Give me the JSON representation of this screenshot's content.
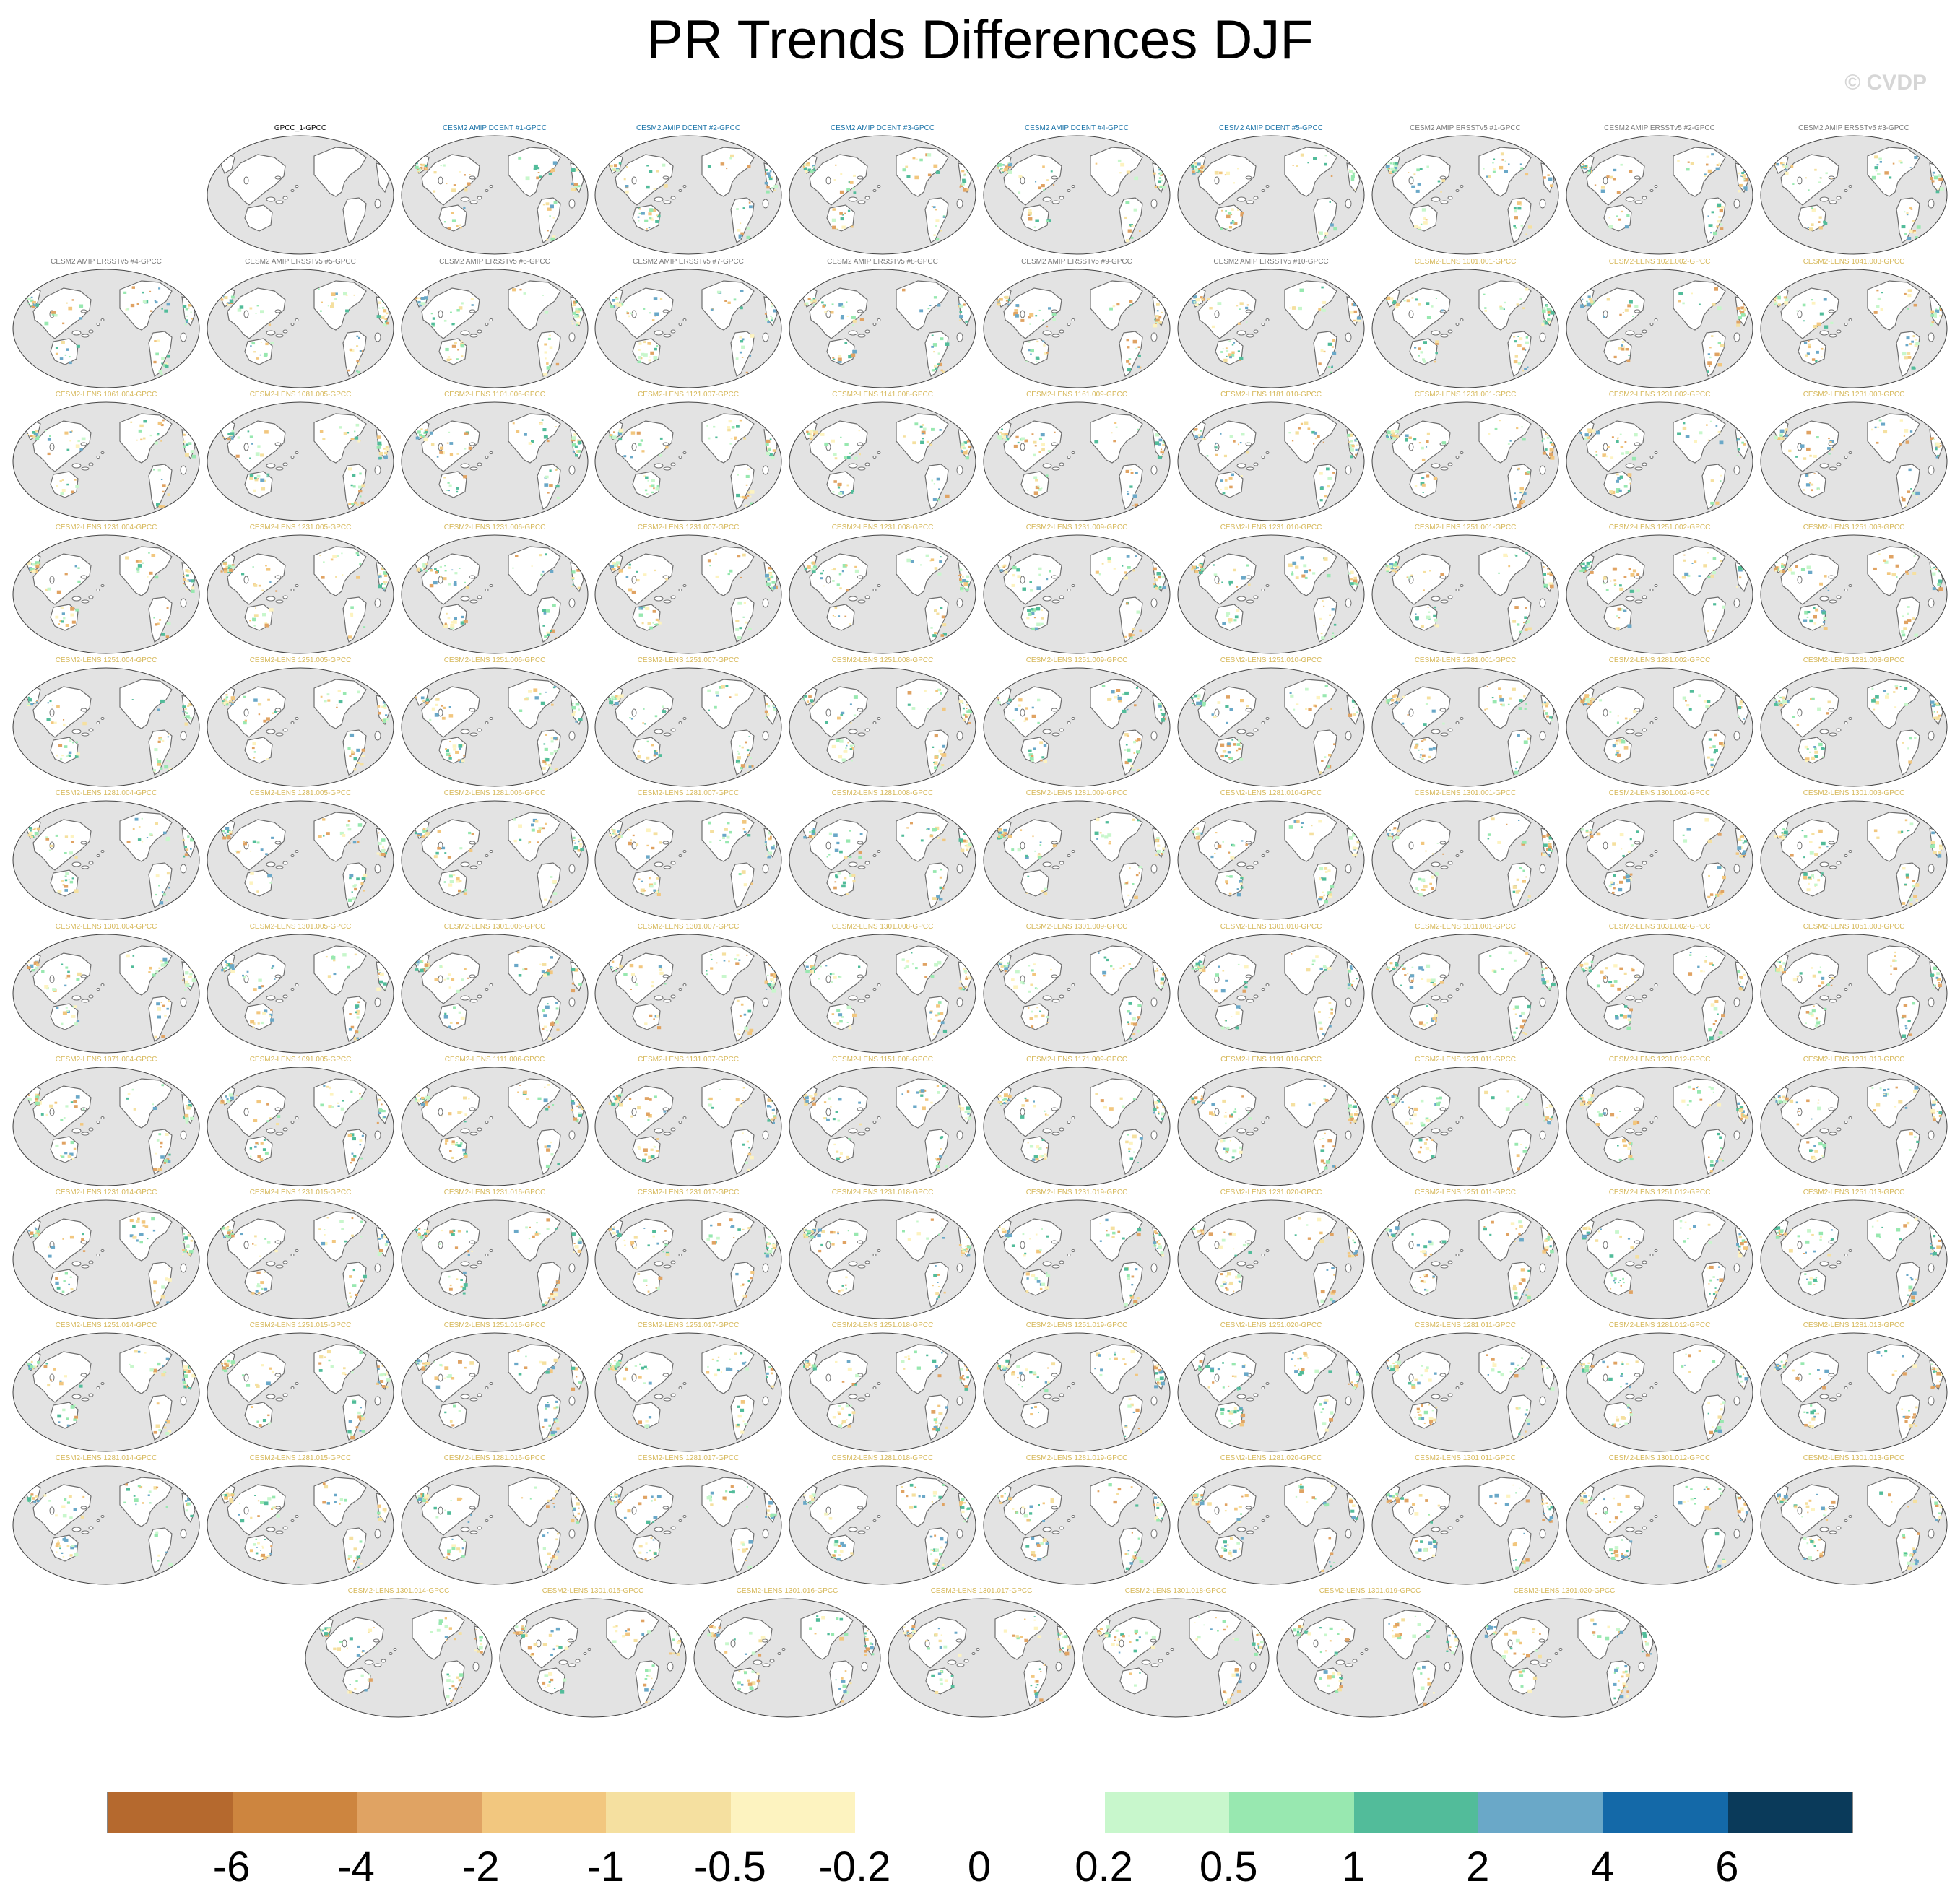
{
  "title": "PR Trends Differences DJF",
  "copyright": "© CVDP",
  "chart_data": {
    "type": "heatmap",
    "title": "PR Trends Differences DJF",
    "description_of_panels": "Global map panels of DJF precipitation trend differences relative to GPCC",
    "panels": [
      {
        "label": "GPCC_1-GPCC",
        "group": "obs"
      },
      {
        "label": "CESM2 AMIP DCENT #1-GPCC",
        "group": "dcent"
      },
      {
        "label": "CESM2 AMIP DCENT #2-GPCC",
        "group": "dcent"
      },
      {
        "label": "CESM2 AMIP DCENT #3-GPCC",
        "group": "dcent"
      },
      {
        "label": "CESM2 AMIP DCENT #4-GPCC",
        "group": "dcent"
      },
      {
        "label": "CESM2 AMIP DCENT #5-GPCC",
        "group": "dcent"
      },
      {
        "label": "CESM2 AMIP ERSSTv5 #1-GPCC",
        "group": "ersst"
      },
      {
        "label": "CESM2 AMIP ERSSTv5 #2-GPCC",
        "group": "ersst"
      },
      {
        "label": "CESM2 AMIP ERSSTv5 #3-GPCC",
        "group": "ersst"
      },
      {
        "label": "CESM2 AMIP ERSSTv5 #4-GPCC",
        "group": "ersst"
      },
      {
        "label": "CESM2 AMIP ERSSTv5 #5-GPCC",
        "group": "ersst"
      },
      {
        "label": "CESM2 AMIP ERSSTv5 #6-GPCC",
        "group": "ersst"
      },
      {
        "label": "CESM2 AMIP ERSSTv5 #7-GPCC",
        "group": "ersst"
      },
      {
        "label": "CESM2 AMIP ERSSTv5 #8-GPCC",
        "group": "ersst"
      },
      {
        "label": "CESM2 AMIP ERSSTv5 #9-GPCC",
        "group": "ersst"
      },
      {
        "label": "CESM2 AMIP ERSSTv5 #10-GPCC",
        "group": "ersst"
      },
      {
        "label": "CESM2-LENS 1001.001-GPCC",
        "group": "lens"
      },
      {
        "label": "CESM2-LENS 1021.002-GPCC",
        "group": "lens"
      },
      {
        "label": "CESM2-LENS 1041.003-GPCC",
        "group": "lens"
      },
      {
        "label": "CESM2-LENS 1061.004-GPCC",
        "group": "lens"
      },
      {
        "label": "CESM2-LENS 1081.005-GPCC",
        "group": "lens"
      },
      {
        "label": "CESM2-LENS 1101.006-GPCC",
        "group": "lens"
      },
      {
        "label": "CESM2-LENS 1121.007-GPCC",
        "group": "lens"
      },
      {
        "label": "CESM2-LENS 1141.008-GPCC",
        "group": "lens"
      },
      {
        "label": "CESM2-LENS 1161.009-GPCC",
        "group": "lens"
      },
      {
        "label": "CESM2-LENS 1181.010-GPCC",
        "group": "lens"
      },
      {
        "label": "CESM2-LENS 1231.001-GPCC",
        "group": "lens"
      },
      {
        "label": "CESM2-LENS 1231.002-GPCC",
        "group": "lens"
      },
      {
        "label": "CESM2-LENS 1231.003-GPCC",
        "group": "lens"
      },
      {
        "label": "CESM2-LENS 1231.004-GPCC",
        "group": "lens"
      },
      {
        "label": "CESM2-LENS 1231.005-GPCC",
        "group": "lens"
      },
      {
        "label": "CESM2-LENS 1231.006-GPCC",
        "group": "lens"
      },
      {
        "label": "CESM2-LENS 1231.007-GPCC",
        "group": "lens"
      },
      {
        "label": "CESM2-LENS 1231.008-GPCC",
        "group": "lens"
      },
      {
        "label": "CESM2-LENS 1231.009-GPCC",
        "group": "lens"
      },
      {
        "label": "CESM2-LENS 1231.010-GPCC",
        "group": "lens"
      },
      {
        "label": "CESM2-LENS 1251.001-GPCC",
        "group": "lens"
      },
      {
        "label": "CESM2-LENS 1251.002-GPCC",
        "group": "lens"
      },
      {
        "label": "CESM2-LENS 1251.003-GPCC",
        "group": "lens"
      },
      {
        "label": "CESM2-LENS 1251.004-GPCC",
        "group": "lens"
      },
      {
        "label": "CESM2-LENS 1251.005-GPCC",
        "group": "lens"
      },
      {
        "label": "CESM2-LENS 1251.006-GPCC",
        "group": "lens"
      },
      {
        "label": "CESM2-LENS 1251.007-GPCC",
        "group": "lens"
      },
      {
        "label": "CESM2-LENS 1251.008-GPCC",
        "group": "lens"
      },
      {
        "label": "CESM2-LENS 1251.009-GPCC",
        "group": "lens"
      },
      {
        "label": "CESM2-LENS 1251.010-GPCC",
        "group": "lens"
      },
      {
        "label": "CESM2-LENS 1281.001-GPCC",
        "group": "lens"
      },
      {
        "label": "CESM2-LENS 1281.002-GPCC",
        "group": "lens"
      },
      {
        "label": "CESM2-LENS 1281.003-GPCC",
        "group": "lens"
      },
      {
        "label": "CESM2-LENS 1281.004-GPCC",
        "group": "lens"
      },
      {
        "label": "CESM2-LENS 1281.005-GPCC",
        "group": "lens"
      },
      {
        "label": "CESM2-LENS 1281.006-GPCC",
        "group": "lens"
      },
      {
        "label": "CESM2-LENS 1281.007-GPCC",
        "group": "lens"
      },
      {
        "label": "CESM2-LENS 1281.008-GPCC",
        "group": "lens"
      },
      {
        "label": "CESM2-LENS 1281.009-GPCC",
        "group": "lens"
      },
      {
        "label": "CESM2-LENS 1281.010-GPCC",
        "group": "lens"
      },
      {
        "label": "CESM2-LENS 1301.001-GPCC",
        "group": "lens"
      },
      {
        "label": "CESM2-LENS 1301.002-GPCC",
        "group": "lens"
      },
      {
        "label": "CESM2-LENS 1301.003-GPCC",
        "group": "lens"
      },
      {
        "label": "CESM2-LENS 1301.004-GPCC",
        "group": "lens"
      },
      {
        "label": "CESM2-LENS 1301.005-GPCC",
        "group": "lens"
      },
      {
        "label": "CESM2-LENS 1301.006-GPCC",
        "group": "lens"
      },
      {
        "label": "CESM2-LENS 1301.007-GPCC",
        "group": "lens"
      },
      {
        "label": "CESM2-LENS 1301.008-GPCC",
        "group": "lens"
      },
      {
        "label": "CESM2-LENS 1301.009-GPCC",
        "group": "lens"
      },
      {
        "label": "CESM2-LENS 1301.010-GPCC",
        "group": "lens"
      },
      {
        "label": "CESM2-LENS 1011.001-GPCC",
        "group": "lens"
      },
      {
        "label": "CESM2-LENS 1031.002-GPCC",
        "group": "lens"
      },
      {
        "label": "CESM2-LENS 1051.003-GPCC",
        "group": "lens"
      },
      {
        "label": "CESM2-LENS 1071.004-GPCC",
        "group": "lens"
      },
      {
        "label": "CESM2-LENS 1091.005-GPCC",
        "group": "lens"
      },
      {
        "label": "CESM2-LENS 1111.006-GPCC",
        "group": "lens"
      },
      {
        "label": "CESM2-LENS 1131.007-GPCC",
        "group": "lens"
      },
      {
        "label": "CESM2-LENS 1151.008-GPCC",
        "group": "lens"
      },
      {
        "label": "CESM2-LENS 1171.009-GPCC",
        "group": "lens"
      },
      {
        "label": "CESM2-LENS 1191.010-GPCC",
        "group": "lens"
      },
      {
        "label": "CESM2-LENS 1231.011-GPCC",
        "group": "lens"
      },
      {
        "label": "CESM2-LENS 1231.012-GPCC",
        "group": "lens"
      },
      {
        "label": "CESM2-LENS 1231.013-GPCC",
        "group": "lens"
      },
      {
        "label": "CESM2-LENS 1231.014-GPCC",
        "group": "lens"
      },
      {
        "label": "CESM2-LENS 1231.015-GPCC",
        "group": "lens"
      },
      {
        "label": "CESM2-LENS 1231.016-GPCC",
        "group": "lens"
      },
      {
        "label": "CESM2-LENS 1231.017-GPCC",
        "group": "lens"
      },
      {
        "label": "CESM2-LENS 1231.018-GPCC",
        "group": "lens"
      },
      {
        "label": "CESM2-LENS 1231.019-GPCC",
        "group": "lens"
      },
      {
        "label": "CESM2-LENS 1231.020-GPCC",
        "group": "lens"
      },
      {
        "label": "CESM2-LENS 1251.011-GPCC",
        "group": "lens"
      },
      {
        "label": "CESM2-LENS 1251.012-GPCC",
        "group": "lens"
      },
      {
        "label": "CESM2-LENS 1251.013-GPCC",
        "group": "lens"
      },
      {
        "label": "CESM2-LENS 1251.014-GPCC",
        "group": "lens"
      },
      {
        "label": "CESM2-LENS 1251.015-GPCC",
        "group": "lens"
      },
      {
        "label": "CESM2-LENS 1251.016-GPCC",
        "group": "lens"
      },
      {
        "label": "CESM2-LENS 1251.017-GPCC",
        "group": "lens"
      },
      {
        "label": "CESM2-LENS 1251.018-GPCC",
        "group": "lens"
      },
      {
        "label": "CESM2-LENS 1251.019-GPCC",
        "group": "lens"
      },
      {
        "label": "CESM2-LENS 1251.020-GPCC",
        "group": "lens"
      },
      {
        "label": "CESM2-LENS 1281.011-GPCC",
        "group": "lens"
      },
      {
        "label": "CESM2-LENS 1281.012-GPCC",
        "group": "lens"
      },
      {
        "label": "CESM2-LENS 1281.013-GPCC",
        "group": "lens"
      },
      {
        "label": "CESM2-LENS 1281.014-GPCC",
        "group": "lens"
      },
      {
        "label": "CESM2-LENS 1281.015-GPCC",
        "group": "lens"
      },
      {
        "label": "CESM2-LENS 1281.016-GPCC",
        "group": "lens"
      },
      {
        "label": "CESM2-LENS 1281.017-GPCC",
        "group": "lens"
      },
      {
        "label": "CESM2-LENS 1281.018-GPCC",
        "group": "lens"
      },
      {
        "label": "CESM2-LENS 1281.019-GPCC",
        "group": "lens"
      },
      {
        "label": "CESM2-LENS 1281.020-GPCC",
        "group": "lens"
      },
      {
        "label": "CESM2-LENS 1301.011-GPCC",
        "group": "lens"
      },
      {
        "label": "CESM2-LENS 1301.012-GPCC",
        "group": "lens"
      },
      {
        "label": "CESM2-LENS 1301.013-GPCC",
        "group": "lens"
      },
      {
        "label": "CESM2-LENS 1301.014-GPCC",
        "group": "lens"
      },
      {
        "label": "CESM2-LENS 1301.015-GPCC",
        "group": "lens"
      },
      {
        "label": "CESM2-LENS 1301.016-GPCC",
        "group": "lens"
      },
      {
        "label": "CESM2-LENS 1301.017-GPCC",
        "group": "lens"
      },
      {
        "label": "CESM2-LENS 1301.018-GPCC",
        "group": "lens"
      },
      {
        "label": "CESM2-LENS 1301.019-GPCC",
        "group": "lens"
      },
      {
        "label": "CESM2-LENS 1301.020-GPCC",
        "group": "lens"
      }
    ],
    "colorbar": {
      "levels": [
        "-6",
        "-4",
        "-2",
        "-1",
        "-0.5",
        "-0.2",
        "0",
        "0.2",
        "0.5",
        "1",
        "2",
        "4",
        "6"
      ],
      "colors": [
        "#b5692e",
        "#cd853f",
        "#e0a363",
        "#f2c77f",
        "#f5e0a0",
        "#fdf3c0",
        "#ffffff",
        "#ffffff",
        "#c8f7cc",
        "#98e8b0",
        "#52bc9a",
        "#6aa8c8",
        "#1469a8",
        "#0a3a5a"
      ]
    },
    "group_colors": {
      "obs": "#000000",
      "dcent": "#1a73a8",
      "ersst": "#7a7a7a",
      "lens": "#d6b85a"
    },
    "ocean_color": "#e3e3e3",
    "coast_color": "#6e6e6e"
  }
}
